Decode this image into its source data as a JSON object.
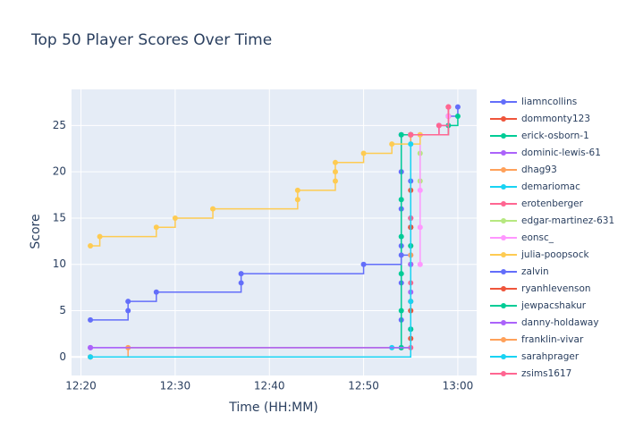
{
  "chart_data": {
    "type": "line",
    "line_shape": "hv",
    "title": "Top 50 Player Scores Over Time",
    "x_label": "Time (HH:MM)",
    "y_label": "Score",
    "xlim": [
      "12:19",
      "13:02"
    ],
    "xticks": [
      "12:20",
      "12:30",
      "12:40",
      "12:50",
      "13:00"
    ],
    "ylim": [
      -2,
      28.9
    ],
    "yticks": [
      0,
      5,
      10,
      15,
      20,
      25
    ],
    "grid": true,
    "series": [
      {
        "name": "liamncollins",
        "color": "#636efa",
        "x": [
          "12:54",
          "12:54",
          "12:54",
          "12:54",
          "12:54",
          "12:54",
          "12:54",
          "12:58",
          "12:59",
          "13:00"
        ],
        "values": [
          1,
          4,
          8,
          12,
          16,
          20,
          24,
          25,
          26,
          27
        ]
      },
      {
        "name": "dommonty123",
        "color": "#EF553B",
        "x": [
          "12:55",
          "12:55",
          "12:55",
          "12:55",
          "12:55",
          "12:55",
          "12:59",
          "12:59"
        ],
        "values": [
          2,
          6,
          10,
          14,
          18,
          24,
          26,
          27
        ]
      },
      {
        "name": "erick-osborn-1",
        "color": "#00cc96",
        "x": [
          "12:54",
          "12:54",
          "12:54",
          "12:54",
          "12:54",
          "12:54",
          "12:59",
          "13:00"
        ],
        "values": [
          1,
          5,
          9,
          13,
          17,
          24,
          25,
          26
        ]
      },
      {
        "name": "dominic-lewis-61",
        "color": "#ab63fa",
        "x": [
          "12:21",
          "12:55",
          "12:55",
          "12:55",
          "12:55",
          "12:55"
        ],
        "values": [
          1,
          3,
          7,
          11,
          15,
          24
        ]
      },
      {
        "name": "dhag93",
        "color": "#FFA15A",
        "x": [
          "12:21",
          "12:25",
          "12:55",
          "12:55",
          "12:55"
        ],
        "values": [
          0,
          1,
          5,
          12,
          24
        ]
      },
      {
        "name": "demariomac",
        "color": "#19d3f3",
        "x": [
          "12:53",
          "12:55",
          "12:55",
          "12:55"
        ],
        "values": [
          1,
          6,
          15,
          24
        ]
      },
      {
        "name": "erotenberger",
        "color": "#FF6692",
        "x": [
          "12:55",
          "12:55",
          "12:55",
          "12:55",
          "12:59"
        ],
        "values": [
          1,
          8,
          15,
          24,
          27
        ]
      },
      {
        "name": "edgar-martinez-631",
        "color": "#B6E880",
        "x": [
          "12:56",
          "12:56",
          "12:56"
        ],
        "values": [
          19,
          22,
          24
        ]
      },
      {
        "name": "eonsc_",
        "color": "#FF97FF",
        "x": [
          "12:56",
          "12:56",
          "12:56",
          "12:56",
          "12:58",
          "12:59"
        ],
        "values": [
          10,
          14,
          18,
          24,
          25,
          26
        ]
      },
      {
        "name": "julia-poopsock",
        "color": "#FECB52",
        "x": [
          "12:21",
          "12:22",
          "12:28",
          "12:30",
          "12:34",
          "12:43",
          "12:43",
          "12:47",
          "12:47",
          "12:47",
          "12:50",
          "12:53",
          "12:56"
        ],
        "values": [
          12,
          13,
          14,
          15,
          16,
          17,
          18,
          19,
          20,
          21,
          22,
          23,
          24
        ]
      },
      {
        "name": "zalvin",
        "color": "#636efa",
        "x": [
          "12:21",
          "12:25",
          "12:25",
          "12:28",
          "12:37",
          "12:37",
          "12:50",
          "12:54",
          "12:55",
          "12:55",
          "12:55"
        ],
        "values": [
          4,
          5,
          6,
          7,
          8,
          9,
          10,
          11,
          14,
          19,
          24
        ]
      },
      {
        "name": "ryanhlevenson",
        "color": "#EF553B",
        "x": [
          "12:55",
          "12:55",
          "12:55"
        ],
        "values": [
          5,
          14,
          24
        ]
      },
      {
        "name": "jewpacshakur",
        "color": "#00cc96",
        "x": [
          "12:55",
          "12:55",
          "12:55"
        ],
        "values": [
          3,
          12,
          24
        ]
      },
      {
        "name": "danny-holdaway",
        "color": "#ab63fa",
        "x": [
          "12:21",
          "12:55",
          "12:55"
        ],
        "values": [
          1,
          10,
          24
        ]
      },
      {
        "name": "franklin-vivar",
        "color": "#FFA15A",
        "x": [
          "12:21",
          "12:55",
          "12:55"
        ],
        "values": [
          0,
          11,
          24
        ]
      },
      {
        "name": "sarahprager",
        "color": "#19d3f3",
        "x": [
          "12:21",
          "12:55"
        ],
        "values": [
          0,
          23
        ]
      },
      {
        "name": "zsims1617",
        "color": "#FF6692",
        "x": [
          "12:55",
          "12:58",
          "12:59"
        ],
        "values": [
          24,
          25,
          27
        ]
      }
    ]
  }
}
